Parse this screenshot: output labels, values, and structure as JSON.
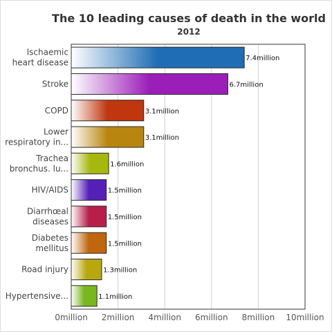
{
  "chart_data": {
    "type": "bar",
    "orientation": "horizontal",
    "title": "The 10 leading causes of death in the world",
    "subtitle": "2012",
    "categories": [
      [
        "Ischaemic",
        "heart disease"
      ],
      [
        "Stroke"
      ],
      [
        "COPD"
      ],
      [
        "Lower",
        "respiratory in..."
      ],
      [
        "Trachea",
        "bronchus. lu..."
      ],
      [
        "HIV/AIDS"
      ],
      [
        "Diarrhœal",
        "diseases"
      ],
      [
        "Diabetes",
        "mellitus"
      ],
      [
        "Road injury"
      ],
      [
        "Hypertensive..."
      ]
    ],
    "values": [
      7.4,
      6.7,
      3.1,
      3.1,
      1.6,
      1.5,
      1.5,
      1.5,
      1.3,
      1.1
    ],
    "value_labels": [
      "7.4million",
      "6.7million",
      "3.1million",
      "3.1million",
      "1.6million",
      "1.5million",
      "1.5million",
      "1.5million",
      "1.3million",
      "1.1million"
    ],
    "colors": [
      "#1f6db4",
      "#9b1eb8",
      "#c0360e",
      "#b8860e",
      "#a6b80e",
      "#5520b8",
      "#b81e4a",
      "#c0660e",
      "#b8a80e",
      "#78b81e"
    ],
    "xlim": [
      0,
      10
    ],
    "xticks": [
      0,
      2,
      4,
      6,
      8,
      10
    ],
    "xtick_labels": [
      "0million",
      "2million",
      "4million",
      "6million",
      "8million",
      "10million"
    ],
    "xlabel": "",
    "ylabel": "",
    "grid": "vertical",
    "legend": "none"
  }
}
